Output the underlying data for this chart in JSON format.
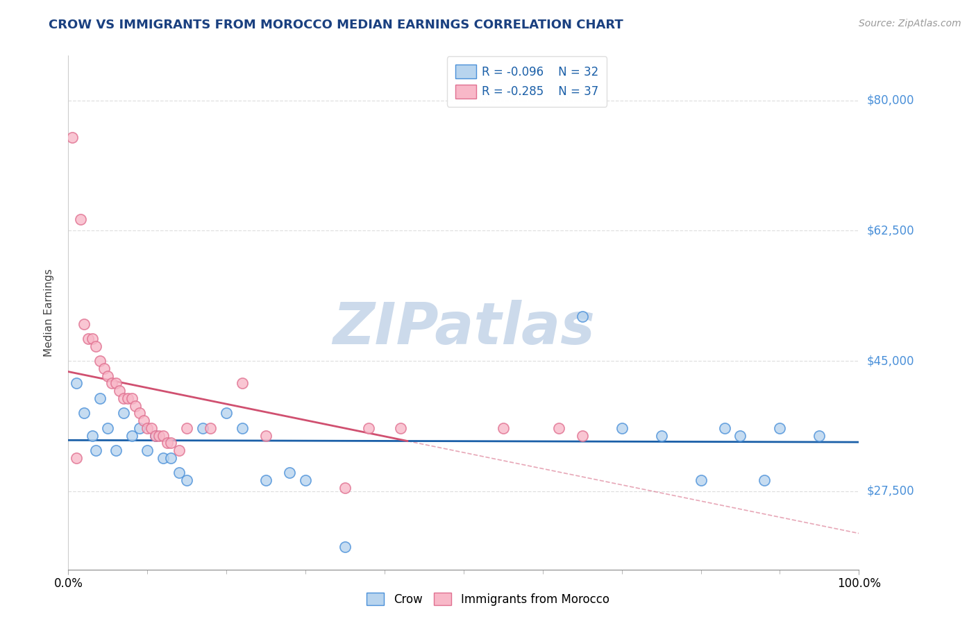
{
  "title": "CROW VS IMMIGRANTS FROM MOROCCO MEDIAN EARNINGS CORRELATION CHART",
  "source": "Source: ZipAtlas.com",
  "ylabel": "Median Earnings",
  "yticks": [
    27500,
    45000,
    62500,
    80000
  ],
  "ytick_labels": [
    "$27,500",
    "$45,000",
    "$62,500",
    "$80,000"
  ],
  "xmin": 0.0,
  "xmax": 100.0,
  "ymin": 17000,
  "ymax": 86000,
  "legend_r_crow": "R = -0.096",
  "legend_n_crow": "N = 32",
  "legend_r_morocco": "R = -0.285",
  "legend_n_morocco": "N = 37",
  "crow_color": "#b8d4ee",
  "crow_edge_color": "#4a90d9",
  "crow_line_color": "#1a5fa8",
  "morocco_color": "#f8b8c8",
  "morocco_edge_color": "#e07090",
  "morocco_line_color": "#d05070",
  "title_color": "#1a4080",
  "source_color": "#999999",
  "ytick_color": "#4a90d9",
  "grid_color": "#d8d8d8",
  "watermark_color": "#ccdaeb",
  "crow_x": [
    1.0,
    2.0,
    3.0,
    3.5,
    4.0,
    5.0,
    6.0,
    7.0,
    8.0,
    9.0,
    10.0,
    11.0,
    12.0,
    13.0,
    14.0,
    15.0,
    17.0,
    20.0,
    22.0,
    25.0,
    28.0,
    30.0,
    35.0,
    65.0,
    70.0,
    75.0,
    80.0,
    83.0,
    85.0,
    88.0,
    90.0,
    95.0
  ],
  "crow_y": [
    42000,
    38000,
    35000,
    33000,
    40000,
    36000,
    33000,
    38000,
    35000,
    36000,
    33000,
    35000,
    32000,
    32000,
    30000,
    29000,
    36000,
    38000,
    36000,
    29000,
    30000,
    29000,
    20000,
    51000,
    36000,
    35000,
    29000,
    36000,
    35000,
    29000,
    36000,
    35000
  ],
  "morocco_x": [
    0.5,
    1.0,
    1.5,
    2.0,
    2.5,
    3.0,
    3.5,
    4.0,
    4.5,
    5.0,
    5.5,
    6.0,
    6.5,
    7.0,
    7.5,
    8.0,
    8.5,
    9.0,
    9.5,
    10.0,
    10.5,
    11.0,
    11.5,
    12.0,
    12.5,
    13.0,
    14.0,
    15.0,
    18.0,
    22.0,
    25.0,
    35.0,
    38.0,
    42.0,
    55.0,
    62.0,
    65.0
  ],
  "morocco_y": [
    75000,
    32000,
    64000,
    50000,
    48000,
    48000,
    47000,
    45000,
    44000,
    43000,
    42000,
    42000,
    41000,
    40000,
    40000,
    40000,
    39000,
    38000,
    37000,
    36000,
    36000,
    35000,
    35000,
    35000,
    34000,
    34000,
    33000,
    36000,
    36000,
    42000,
    35000,
    28000,
    36000,
    36000,
    36000,
    36000,
    35000
  ]
}
